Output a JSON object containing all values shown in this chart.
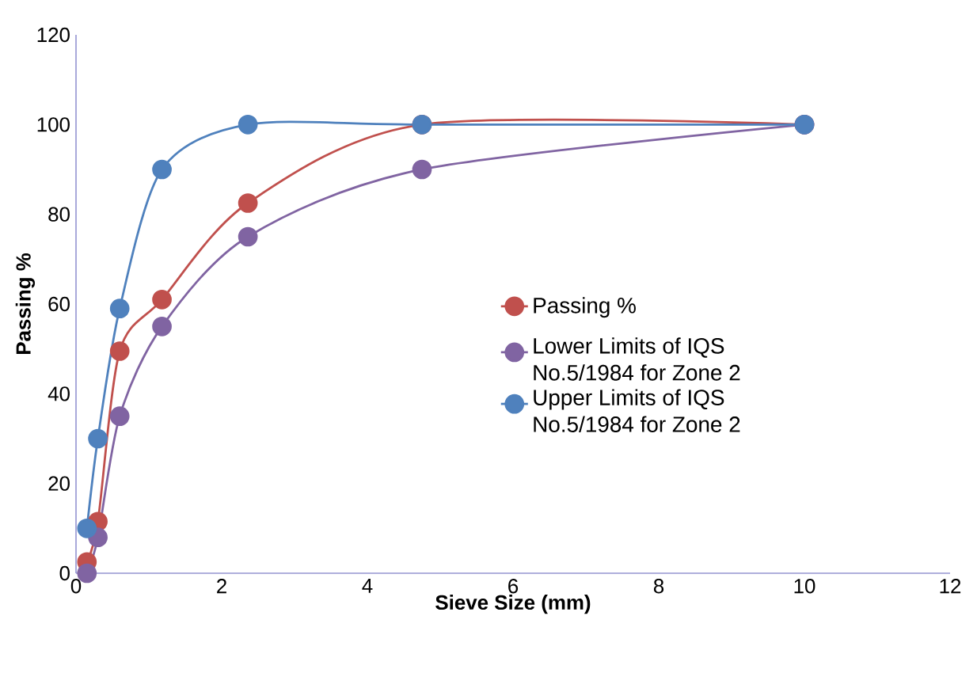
{
  "chart_data": {
    "type": "line",
    "xlabel": "Sieve Size (mm)",
    "ylabel": "Passing %",
    "xlim": [
      0,
      12
    ],
    "xticks": [
      0,
      2,
      4,
      6,
      8,
      10,
      12
    ],
    "ylim": [
      0,
      120
    ],
    "yticks": [
      0,
      20,
      40,
      60,
      80,
      100,
      120
    ],
    "x": [
      0.15,
      0.3,
      0.6,
      1.18,
      2.36,
      4.75,
      10
    ],
    "marker": "circle",
    "grid": false,
    "legend": "right",
    "series": [
      {
        "name": "Passing %",
        "color": "#c0504d",
        "values": [
          2.5,
          11.5,
          49.5,
          61,
          82.5,
          100,
          100
        ]
      },
      {
        "name": "Lower Limits of IQS No.5/1984 for Zone 2",
        "color": "#8064a2",
        "values": [
          0,
          8,
          35,
          55,
          75,
          90,
          100
        ]
      },
      {
        "name": "Upper Limits of IQS No.5/1984 for Zone 2",
        "color": "#4f81bd",
        "values": [
          10,
          30,
          59,
          90,
          100,
          100,
          100
        ]
      }
    ]
  }
}
